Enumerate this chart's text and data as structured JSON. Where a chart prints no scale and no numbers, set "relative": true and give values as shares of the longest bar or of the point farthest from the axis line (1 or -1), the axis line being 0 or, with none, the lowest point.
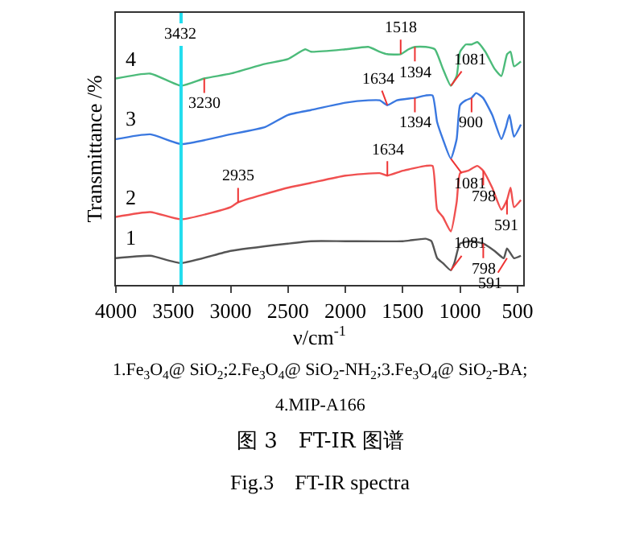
{
  "chart_data": {
    "type": "line",
    "relative": true,
    "xlabel": "ν/cm$^{-1}$",
    "ylabel": "Transmittance /%",
    "xlim": [
      4000,
      450
    ],
    "xticks": [
      4000,
      3500,
      3000,
      2500,
      2000,
      1500,
      1000,
      500
    ],
    "legend": false,
    "marker": "none",
    "line_style": "solid",
    "series": [
      {
        "name": "1",
        "color": "#555555",
        "x": [
          4000,
          3700,
          3432,
          3000,
          2500,
          2300,
          2000,
          1500,
          1300,
          1250,
          1200,
          1150,
          1081,
          1050,
          1000,
          900,
          798,
          700,
          620,
          591,
          530,
          470
        ],
        "values": [
          0.11,
          0.12,
          0.09,
          0.14,
          0.17,
          0.18,
          0.18,
          0.18,
          0.19,
          0.18,
          0.11,
          0.09,
          0.06,
          0.09,
          0.17,
          0.18,
          0.17,
          0.14,
          0.11,
          0.15,
          0.11,
          0.12
        ]
      },
      {
        "name": "2",
        "color": "#f05050",
        "x": [
          4000,
          3700,
          3432,
          3000,
          2935,
          2500,
          2300,
          2000,
          1700,
          1634,
          1500,
          1300,
          1240,
          1200,
          1150,
          1081,
          1030,
          1000,
          930,
          850,
          798,
          720,
          640,
          591,
          560,
          530,
          470
        ],
        "values": [
          0.28,
          0.3,
          0.27,
          0.32,
          0.34,
          0.4,
          0.42,
          0.45,
          0.46,
          0.45,
          0.47,
          0.49,
          0.49,
          0.31,
          0.28,
          0.22,
          0.34,
          0.46,
          0.47,
          0.49,
          0.47,
          0.4,
          0.31,
          0.35,
          0.4,
          0.32,
          0.35
        ]
      },
      {
        "name": "3",
        "color": "#3a78e0",
        "x": [
          4000,
          3700,
          3432,
          3000,
          2700,
          2500,
          2300,
          2000,
          1800,
          1700,
          1634,
          1550,
          1394,
          1300,
          1240,
          1200,
          1150,
          1081,
          1030,
          1000,
          950,
          900,
          860,
          800,
          720,
          640,
          600,
          570,
          530,
          470
        ],
        "values": [
          0.6,
          0.62,
          0.58,
          0.62,
          0.65,
          0.7,
          0.72,
          0.75,
          0.76,
          0.76,
          0.74,
          0.76,
          0.77,
          0.78,
          0.78,
          0.67,
          0.6,
          0.52,
          0.6,
          0.74,
          0.76,
          0.77,
          0.79,
          0.77,
          0.7,
          0.6,
          0.65,
          0.7,
          0.61,
          0.66
        ]
      },
      {
        "name": "4",
        "color": "#4cbb7a",
        "x": [
          4000,
          3700,
          3432,
          3230,
          3000,
          2700,
          2500,
          2350,
          2300,
          2000,
          1800,
          1700,
          1634,
          1518,
          1450,
          1394,
          1300,
          1220,
          1150,
          1081,
          1030,
          1000,
          950,
          900,
          850,
          780,
          700,
          640,
          590,
          560,
          530,
          470
        ],
        "values": [
          0.85,
          0.87,
          0.82,
          0.85,
          0.87,
          0.91,
          0.93,
          0.97,
          0.96,
          0.97,
          0.98,
          0.96,
          0.95,
          0.95,
          0.97,
          0.98,
          0.98,
          0.97,
          0.89,
          0.82,
          0.86,
          0.96,
          0.99,
          0.99,
          1.0,
          0.96,
          0.89,
          0.86,
          0.95,
          0.96,
          0.9,
          0.92
        ]
      }
    ],
    "ref_lines": [
      {
        "axis": "x",
        "value": 3432,
        "label": "3432",
        "color": "#22ddee"
      }
    ],
    "annotations": [
      {
        "text": "3230",
        "x": 3230,
        "y": 0.85
      },
      {
        "text": "1518",
        "x": 1518,
        "y": 0.95
      },
      {
        "text": "1394",
        "x": 1394,
        "y": 0.98
      },
      {
        "text": "1081",
        "x": 1081,
        "y": 0.82
      },
      {
        "text": "1634",
        "x": 1634,
        "y": 0.74
      },
      {
        "text": "1394",
        "x": 1394,
        "y": 0.77
      },
      {
        "text": "900",
        "x": 900,
        "y": 0.77
      },
      {
        "text": "1081",
        "x": 1081,
        "y": 0.52
      },
      {
        "text": "2935",
        "x": 2935,
        "y": 0.34
      },
      {
        "text": "1634",
        "x": 1634,
        "y": 0.45
      },
      {
        "text": "798",
        "x": 798,
        "y": 0.47
      },
      {
        "text": "591",
        "x": 591,
        "y": 0.35
      },
      {
        "text": "1081",
        "x": 1081,
        "y": 0.06
      },
      {
        "text": "798",
        "x": 798,
        "y": 0.17
      },
      {
        "text": "591",
        "x": 591,
        "y": 0.11
      },
      "1.Fe$_{3}$O$_{4}$@ SiO$_{2}$;2.Fe$_{3}$O$_{4}$@ SiO$_{2}$-NH$_{2}$;3.Fe$_{3}$O$_{4}$@ SiO$_{2}$-BA;",
      "4.MIP-A166",
      "图 3　FT-IR 图谱",
      "Fig.3　FT-IR spectra"
    ]
  }
}
